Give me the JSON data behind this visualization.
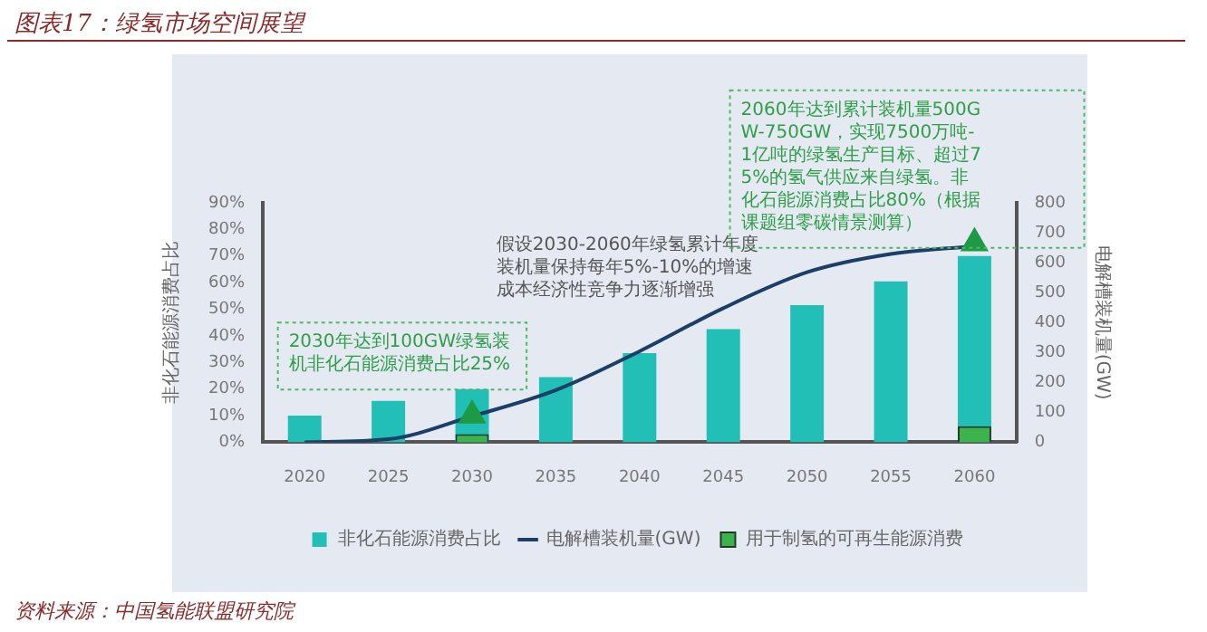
{
  "chart_data": {
    "type": "bar",
    "title": "图表17：绿氢市场空间展望",
    "categories": [
      "2020",
      "2025",
      "2030",
      "2035",
      "2040",
      "2045",
      "2050",
      "2055",
      "2060"
    ],
    "ylabel": "非化石能源消费占比",
    "y2label": "电解槽装机量(GW)",
    "series": [
      {
        "name": "非化石能源消费占比",
        "color": "#21bfb6",
        "values": [
          10,
          15.5,
          20,
          24.5,
          33.5,
          42.5,
          51.5,
          60.5,
          70
        ]
      },
      {
        "name": "电解槽装机量(GW)",
        "type": "line",
        "axis": "y2",
        "color": "#1b3f66",
        "marker": "none",
        "values": [
          0,
          10,
          87,
          174,
          304,
          448,
          568,
          629,
          655
        ]
      },
      {
        "name": "用于制氢的可再生能源消费",
        "type": "bar",
        "color": "#3cb44b",
        "values": [
          null,
          null,
          3,
          null,
          null,
          null,
          null,
          null,
          6
        ]
      },
      {
        "type": "scatter",
        "axis": "y2",
        "color": "#1e9a45",
        "marker": "triangle",
        "values": [
          null,
          null,
          90,
          null,
          null,
          null,
          null,
          null,
          665
        ]
      }
    ],
    "ylim": [
      0,
      90
    ],
    "yticks": [
      {
        "value": 0,
        "label": "0%"
      },
      {
        "value": 10,
        "label": "10%"
      },
      {
        "value": 20,
        "label": "20%"
      },
      {
        "value": 30,
        "label": "30%"
      },
      {
        "value": 40,
        "label": "40%"
      },
      {
        "value": 50,
        "label": "50%"
      },
      {
        "value": 60,
        "label": "60%"
      },
      {
        "value": 70,
        "label": "70%"
      },
      {
        "value": 80,
        "label": "80%"
      },
      {
        "value": 90,
        "label": "90%"
      }
    ],
    "y2lim": [
      0,
      800
    ],
    "y2ticks": [
      0,
      100,
      200,
      300,
      400,
      500,
      600,
      700,
      800
    ],
    "grid": false,
    "legend": "bottom",
    "annotations": [
      "假设2030-2060年绿氢累计年度装机量保持每年5%-10%的增速成本经济性竞争力逐渐增强",
      "2030年达到100GW绿氢装机非化石能源消费占比25%",
      "2060年达到累计装机量500GW-750GW，实现7500万吨-1亿吨的绿氢生产目标、超过75%的氢气供应来自绿氢。非化石能源消费占比80%（根据课题组零碳情景测算）",
      "资料来源：中国氢能联盟研究院"
    ]
  }
}
